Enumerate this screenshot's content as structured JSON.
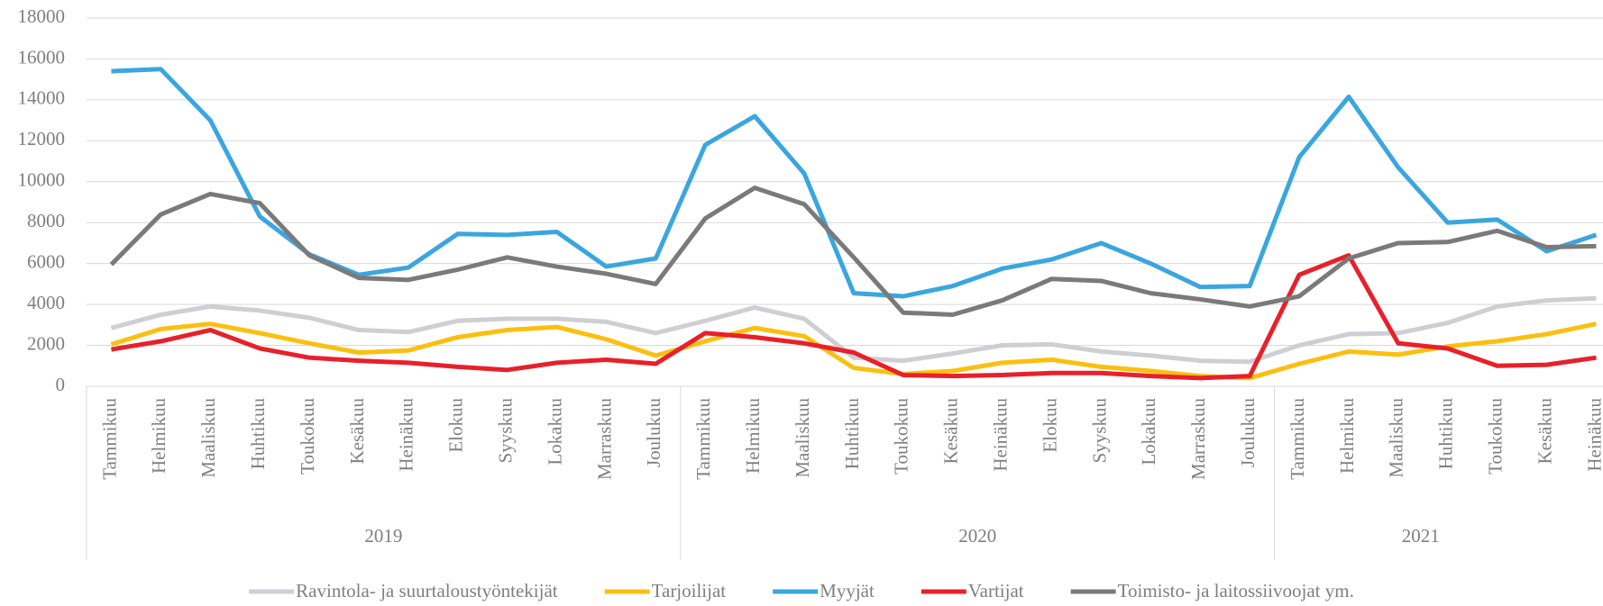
{
  "chart_data": {
    "type": "line",
    "groups": [
      {
        "name": "2019",
        "categories": [
          "Tammikuu",
          "Helmikuu",
          "Maaliskuu",
          "Huhtikuu",
          "Toukokuu",
          "Kesäkuu",
          "Heinäkuu",
          "Elokuu",
          "Syyskuu",
          "Lokakuu",
          "Marraskuu",
          "Joulukuu"
        ]
      },
      {
        "name": "2020",
        "categories": [
          "Tammikuu",
          "Helmikuu",
          "Maaliskuu",
          "Huhtikuu",
          "Toukokuu",
          "Kesäkuu",
          "Heinäkuu",
          "Elokuu",
          "Syyskuu",
          "Lokakuu",
          "Marraskuu",
          "Joulukuu"
        ]
      },
      {
        "name": "2021",
        "categories": [
          "Tammikuu",
          "Helmikuu",
          "Maaliskuu",
          "Huhtikuu",
          "Toukokuu",
          "Kesäkuu",
          "Heinäkuu"
        ]
      }
    ],
    "series": [
      {
        "name": "Ravintola- ja suurtaloustyöntekijät",
        "color": "#cfcfd3",
        "values": [
          2850,
          3500,
          3900,
          3700,
          3350,
          2750,
          2650,
          3200,
          3300,
          3300,
          3150,
          2600,
          3200,
          3850,
          3300,
          1400,
          1250,
          1600,
          2000,
          2050,
          1700,
          1500,
          1250,
          1200,
          2000,
          2550,
          2600,
          3100,
          3900,
          4200,
          4300
        ]
      },
      {
        "name": "Tarjoilijat",
        "color": "#fbbf0f",
        "values": [
          2050,
          2800,
          3050,
          2600,
          2100,
          1650,
          1750,
          2400,
          2750,
          2900,
          2300,
          1500,
          2200,
          2850,
          2450,
          900,
          600,
          750,
          1150,
          1300,
          950,
          750,
          500,
          400,
          1100,
          1700,
          1550,
          1950,
          2200,
          2550,
          3050
        ]
      },
      {
        "name": "Myyjät",
        "color": "#3aa6e0",
        "values": [
          15400,
          15500,
          13000,
          8300,
          6450,
          5450,
          5800,
          7450,
          7400,
          7550,
          5850,
          6250,
          11800,
          13200,
          10400,
          4550,
          4400,
          4900,
          5750,
          6200,
          7000,
          6000,
          4850,
          4900,
          11200,
          14150,
          10700,
          8000,
          8150,
          6600,
          7400
        ]
      },
      {
        "name": "Vartijat",
        "color": "#e8202a",
        "values": [
          1800,
          2200,
          2750,
          1850,
          1400,
          1250,
          1150,
          950,
          800,
          1150,
          1300,
          1100,
          2600,
          2400,
          2100,
          1650,
          550,
          500,
          550,
          650,
          650,
          500,
          400,
          500,
          5450,
          6400,
          2100,
          1850,
          1000,
          1050,
          1400
        ]
      },
      {
        "name": "Toimisto- ja laitossiivoojat ym.",
        "color": "#7a7a7a",
        "values": [
          5950,
          8400,
          9400,
          8950,
          6400,
          5300,
          5200,
          5700,
          6300,
          5850,
          5500,
          5000,
          8200,
          9700,
          8900,
          6300,
          3600,
          3500,
          4200,
          5250,
          5150,
          4550,
          4250,
          3900,
          4400,
          6250,
          7000,
          7050,
          7600,
          6800,
          6850
        ]
      }
    ],
    "ylim": [
      0,
      18000
    ],
    "yticks": [
      0,
      2000,
      4000,
      6000,
      8000,
      10000,
      12000,
      14000,
      16000,
      18000
    ],
    "grid": true,
    "legend": "bottom"
  }
}
